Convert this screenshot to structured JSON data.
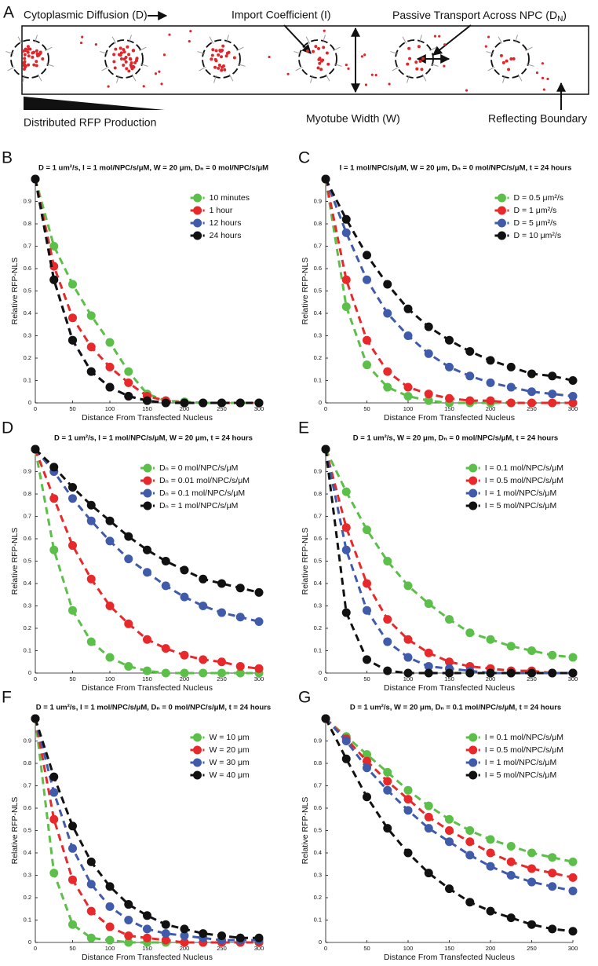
{
  "diagram": {
    "panel": "A",
    "diffusion_label": "Cytoplasmic Diffusion (D)",
    "import_label": "Import Coefficient (I)",
    "passive_label": [
      "Passive Transport Across NPC (D",
      "N",
      ")"
    ],
    "production_label": "Distributed RFP Production",
    "width_label": "Myotube Width (W)",
    "boundary_label": "Reflecting Boundary"
  },
  "chart_data": [
    {
      "type": "line",
      "panel": "B",
      "title": "D = 1 um²/s, I = 1 mol/NPC/s/μM, W = 20 μm, Dₙ = 0 mol/NPC/s/μM",
      "x_label": "Distance From Transfected Nucleus",
      "y_label": "Relative RFP-NLS",
      "x": [
        0,
        25,
        50,
        75,
        100,
        125,
        150,
        175,
        200,
        225,
        250,
        275,
        300
      ],
      "xlim": [
        0,
        300
      ],
      "xticks": [
        0,
        50,
        100,
        150,
        200,
        250,
        300
      ],
      "ylim": [
        0,
        1
      ],
      "yticks": [
        0,
        0.1,
        0.2,
        0.3,
        0.4,
        0.5,
        0.6,
        0.7,
        0.8,
        0.9
      ],
      "legend": "upper right",
      "series": [
        {
          "name": "10 minutes",
          "color": "#5cbf4a",
          "values": [
            1,
            0.7,
            0.53,
            0.39,
            0.27,
            0.14,
            0.04,
            0.01,
            0.005,
            0,
            0,
            0,
            0
          ]
        },
        {
          "name": "1 hour",
          "color": "#e8292b",
          "values": [
            1,
            0.61,
            0.38,
            0.25,
            0.16,
            0.09,
            0.03,
            0.01,
            0,
            0,
            0,
            0,
            0
          ]
        },
        {
          "name": "12 hours",
          "color": "#3f5ba9",
          "values": [
            1,
            0.55,
            0.28,
            0.14,
            0.07,
            0.03,
            0.01,
            0,
            0,
            0,
            0,
            0,
            0
          ]
        },
        {
          "name": "24 hours",
          "color": "#111111",
          "values": [
            1,
            0.55,
            0.28,
            0.14,
            0.07,
            0.03,
            0.01,
            0,
            0,
            0,
            0,
            0,
            0
          ]
        }
      ]
    },
    {
      "type": "line",
      "panel": "C",
      "title": "I = 1 mol/NPC/s/μM, W = 20 μm, Dₙ = 0 mol/NPC/s/μM, t = 24 hours",
      "x_label": "Distance From Transfected Nucleus",
      "y_label": "Relative RFP-NLS",
      "x": [
        0,
        25,
        50,
        75,
        100,
        125,
        150,
        175,
        200,
        225,
        250,
        275,
        300
      ],
      "xlim": [
        0,
        300
      ],
      "xticks": [
        0,
        50,
        100,
        150,
        200,
        250,
        300
      ],
      "ylim": [
        0,
        1
      ],
      "yticks": [
        0,
        0.1,
        0.2,
        0.3,
        0.4,
        0.5,
        0.6,
        0.7,
        0.8,
        0.9
      ],
      "legend": "upper right",
      "series": [
        {
          "name": "D = 0.5 μm²/s",
          "color": "#5cbf4a",
          "values": [
            1,
            0.43,
            0.17,
            0.07,
            0.03,
            0.01,
            0,
            0,
            0,
            0,
            0,
            0,
            0
          ]
        },
        {
          "name": "D = 1 μm²/s",
          "color": "#e8292b",
          "values": [
            1,
            0.55,
            0.28,
            0.14,
            0.07,
            0.04,
            0.02,
            0.01,
            0.01,
            0,
            0,
            0,
            0
          ]
        },
        {
          "name": "D = 5 μm²/s",
          "color": "#3f5ba9",
          "values": [
            1,
            0.76,
            0.55,
            0.4,
            0.3,
            0.22,
            0.16,
            0.12,
            0.09,
            0.07,
            0.05,
            0.04,
            0.03
          ]
        },
        {
          "name": "D = 10 μm²/s",
          "color": "#111111",
          "values": [
            1,
            0.82,
            0.66,
            0.53,
            0.42,
            0.34,
            0.28,
            0.23,
            0.19,
            0.16,
            0.13,
            0.12,
            0.1
          ]
        }
      ]
    },
    {
      "type": "line",
      "panel": "D",
      "title": "D = 1 um²/s, I = 1 mol/NPC/s/μM, W = 20 μm, t = 24 hours",
      "x_label": "Distance From Transfected Nucleus",
      "y_label": "Relative RFP-NLS",
      "x": [
        0,
        25,
        50,
        75,
        100,
        125,
        150,
        175,
        200,
        225,
        250,
        275,
        300
      ],
      "xlim": [
        0,
        300
      ],
      "xticks": [
        0,
        50,
        100,
        150,
        200,
        250,
        300
      ],
      "ylim": [
        0,
        1
      ],
      "yticks": [
        0,
        0.1,
        0.2,
        0.3,
        0.4,
        0.5,
        0.6,
        0.7,
        0.8,
        0.9
      ],
      "legend": "upper right",
      "series": [
        {
          "name": "Dₙ = 0 mol/NPC/s/μM",
          "color": "#5cbf4a",
          "values": [
            1,
            0.55,
            0.28,
            0.14,
            0.07,
            0.03,
            0.01,
            0,
            0,
            0,
            0,
            0,
            0
          ]
        },
        {
          "name": "Dₙ = 0.01 mol/NPC/s/μM",
          "color": "#e8292b",
          "values": [
            1,
            0.78,
            0.57,
            0.42,
            0.3,
            0.22,
            0.15,
            0.11,
            0.08,
            0.06,
            0.05,
            0.03,
            0.02
          ]
        },
        {
          "name": "Dₙ = 0.1 mol/NPC/s/μM",
          "color": "#3f5ba9",
          "values": [
            1,
            0.9,
            0.78,
            0.68,
            0.59,
            0.51,
            0.45,
            0.39,
            0.34,
            0.3,
            0.27,
            0.25,
            0.23
          ]
        },
        {
          "name": "Dₙ = 1 mol/NPC/s/μM",
          "color": "#111111",
          "values": [
            1,
            0.92,
            0.83,
            0.75,
            0.68,
            0.61,
            0.55,
            0.5,
            0.46,
            0.42,
            0.4,
            0.38,
            0.36
          ]
        }
      ]
    },
    {
      "type": "line",
      "panel": "E",
      "title": "D = 1 um²/s, W = 20 μm, Dₙ = 0 mol/NPC/s/μM, t = 24 hours",
      "x_label": "Distance From Transfected Nucleus",
      "y_label": "Relative RFP-NLS",
      "x": [
        0,
        25,
        50,
        75,
        100,
        125,
        150,
        175,
        200,
        225,
        250,
        275,
        300
      ],
      "xlim": [
        0,
        300
      ],
      "xticks": [
        0,
        50,
        100,
        150,
        200,
        250,
        300
      ],
      "ylim": [
        0,
        1
      ],
      "yticks": [
        0,
        0.1,
        0.2,
        0.3,
        0.4,
        0.5,
        0.6,
        0.7,
        0.8,
        0.9
      ],
      "legend": "upper right",
      "series": [
        {
          "name": "I = 0.1 mol/NPC/s/μM",
          "color": "#5cbf4a",
          "values": [
            1,
            0.81,
            0.64,
            0.5,
            0.39,
            0.31,
            0.24,
            0.18,
            0.15,
            0.12,
            0.1,
            0.08,
            0.07
          ]
        },
        {
          "name": "I = 0.5 mol/NPC/s/μM",
          "color": "#e8292b",
          "values": [
            1,
            0.65,
            0.4,
            0.24,
            0.15,
            0.09,
            0.05,
            0.03,
            0.02,
            0.01,
            0.01,
            0,
            0
          ]
        },
        {
          "name": "I = 1 mol/NPC/s/μM",
          "color": "#3f5ba9",
          "values": [
            1,
            0.55,
            0.28,
            0.14,
            0.07,
            0.03,
            0.02,
            0.01,
            0,
            0,
            0,
            0,
            0
          ]
        },
        {
          "name": "I = 5 mol/NPC/s/μM",
          "color": "#111111",
          "values": [
            1,
            0.27,
            0.06,
            0.01,
            0,
            0,
            0,
            0,
            0,
            0,
            0,
            0,
            0
          ]
        }
      ]
    },
    {
      "type": "line",
      "panel": "F",
      "title": "D = 1 um²/s, I = 1 mol/NPC/s/μM, Dₙ = 0 mol/NPC/s/μM, t = 24 hours",
      "x_label": "Distance From Transfected Nucleus",
      "y_label": "Relative RFP-NLS",
      "x": [
        0,
        25,
        50,
        75,
        100,
        125,
        150,
        175,
        200,
        225,
        250,
        275,
        300
      ],
      "xlim": [
        0,
        300
      ],
      "xticks": [
        0,
        50,
        100,
        150,
        200,
        250,
        300
      ],
      "ylim": [
        0,
        1
      ],
      "yticks": [
        0,
        0.1,
        0.2,
        0.3,
        0.4,
        0.5,
        0.6,
        0.7,
        0.8,
        0.9
      ],
      "legend": "upper right",
      "series": [
        {
          "name": "W = 10 μm",
          "color": "#5cbf4a",
          "values": [
            1,
            0.31,
            0.08,
            0.02,
            0.01,
            0,
            0,
            0,
            0,
            0,
            0,
            0,
            0
          ]
        },
        {
          "name": "W = 20 μm",
          "color": "#e8292b",
          "values": [
            1,
            0.55,
            0.28,
            0.14,
            0.07,
            0.03,
            0.02,
            0.01,
            0,
            0,
            0,
            0,
            0
          ]
        },
        {
          "name": "W = 30 μm",
          "color": "#3f5ba9",
          "values": [
            1,
            0.67,
            0.42,
            0.26,
            0.16,
            0.1,
            0.06,
            0.04,
            0.03,
            0.02,
            0.01,
            0.01,
            0.01
          ]
        },
        {
          "name": "W = 40 μm",
          "color": "#111111",
          "values": [
            1,
            0.74,
            0.52,
            0.36,
            0.25,
            0.17,
            0.12,
            0.08,
            0.06,
            0.04,
            0.03,
            0.02,
            0.02
          ]
        }
      ]
    },
    {
      "type": "line",
      "panel": "G",
      "title": "D = 1 um²/s, W = 20 μm, Dₙ = 0.1 mol/NPC/s/μM, t = 24 hours",
      "x_label": "Distance From Transfected Nucleus",
      "y_label": "Relative RFP-NLS",
      "x": [
        0,
        25,
        50,
        75,
        100,
        125,
        150,
        175,
        200,
        225,
        250,
        275,
        300
      ],
      "xlim": [
        0,
        300
      ],
      "xticks": [
        0,
        50,
        100,
        150,
        200,
        250,
        300
      ],
      "ylim": [
        0,
        1
      ],
      "yticks": [
        0,
        0.1,
        0.2,
        0.3,
        0.4,
        0.5,
        0.6,
        0.7,
        0.8,
        0.9
      ],
      "legend": "upper right",
      "series": [
        {
          "name": "I = 0.1 mol/NPC/s/μM",
          "color": "#5cbf4a",
          "values": [
            1,
            0.92,
            0.84,
            0.76,
            0.68,
            0.61,
            0.55,
            0.5,
            0.46,
            0.43,
            0.4,
            0.38,
            0.36
          ]
        },
        {
          "name": "I = 0.5 mol/NPC/s/μM",
          "color": "#e8292b",
          "values": [
            1,
            0.91,
            0.81,
            0.72,
            0.64,
            0.56,
            0.5,
            0.45,
            0.4,
            0.36,
            0.33,
            0.31,
            0.29
          ]
        },
        {
          "name": "I = 1 mol/NPC/s/μM",
          "color": "#3f5ba9",
          "values": [
            1,
            0.9,
            0.78,
            0.68,
            0.59,
            0.51,
            0.45,
            0.39,
            0.34,
            0.3,
            0.27,
            0.25,
            0.23
          ]
        },
        {
          "name": "I = 5 mol/NPC/s/μM",
          "color": "#111111",
          "values": [
            1,
            0.82,
            0.65,
            0.51,
            0.4,
            0.31,
            0.24,
            0.18,
            0.14,
            0.11,
            0.08,
            0.06,
            0.05
          ]
        }
      ]
    }
  ]
}
